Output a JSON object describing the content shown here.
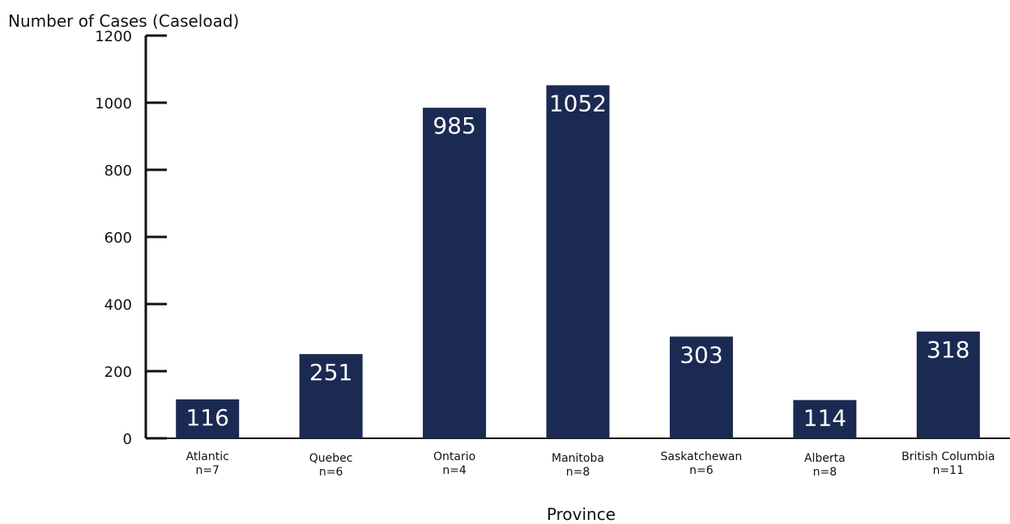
{
  "chart_data": {
    "type": "bar",
    "ylabel": "Number of Cases (Caseload)",
    "xlabel": "Province",
    "ylim": [
      0,
      1200
    ],
    "yticks": [
      0,
      200,
      400,
      600,
      800,
      1000,
      1200
    ],
    "categories": [
      "Atlantic",
      "Quebec",
      "Ontario",
      "Manitoba",
      "Saskatchewan",
      "Alberta",
      "British Columbia"
    ],
    "sample_sizes": [
      "n=7",
      "n=6",
      "n=4",
      "n=8",
      "n=6",
      "n=8",
      "n=11"
    ],
    "values": [
      116,
      251,
      985,
      1052,
      303,
      114,
      318
    ],
    "data_labels": [
      "116",
      "251",
      "985",
      "1052",
      "303",
      "114",
      "318"
    ],
    "grid": false,
    "legend": "none",
    "bar_color": "#1b2a52",
    "axis_color": "#111111"
  }
}
